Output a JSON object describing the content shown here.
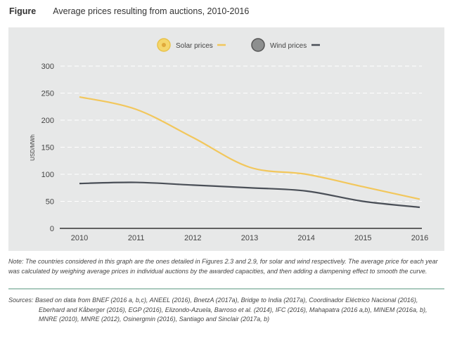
{
  "header": {
    "label": "Figure",
    "title": "Average prices resulting from auctions, 2010-2016"
  },
  "chart_data": {
    "type": "line",
    "title": "Average prices resulting from auctions, 2010-2016",
    "xlabel": "",
    "ylabel": "USD/MWh",
    "x": [
      2010,
      2011,
      2012,
      2013,
      2014,
      2015,
      2016
    ],
    "ylim": [
      0,
      300
    ],
    "yticks": [
      0,
      50,
      100,
      150,
      200,
      250,
      300
    ],
    "grid": "horizontal dashed",
    "legend": "top-center",
    "series": [
      {
        "name": "Solar prices",
        "color": "#f2c75c",
        "icon": "sun-icon",
        "values": [
          243,
          220,
          168,
          113,
          100,
          77,
          54
        ]
      },
      {
        "name": "Wind prices",
        "color": "#4a4f57",
        "icon": "wind-icon",
        "values": [
          83,
          85,
          80,
          75,
          69,
          50,
          39
        ]
      }
    ]
  },
  "note": "Note: The countries considered in this graph are the ones detailed in Figures 2.3 and 2.9, for solar and wind respectively. The average price for each year was calculated by weighing average prices in individual auctions by the awarded capacities, and then adding a dampening effect to smooth the curve.",
  "sources": "Sources: Based on data from BNEF (2016 a, b,c), ANEEL (2016), BnetzA (2017a), Bridge to India (2017a), Coordinador Eléctrico Nacional (2016), Eberhard and Kåberger (2016), EGP (2016), Elizondo-Azuela, Barroso et al. (2014), IFC (2016), Mahapatra (2016 a,b), MINEM (2016a, b), MNRE (2010), MNRE (2012), Osinergmin (2016), Santiago and Sinclair (2017a, b)"
}
